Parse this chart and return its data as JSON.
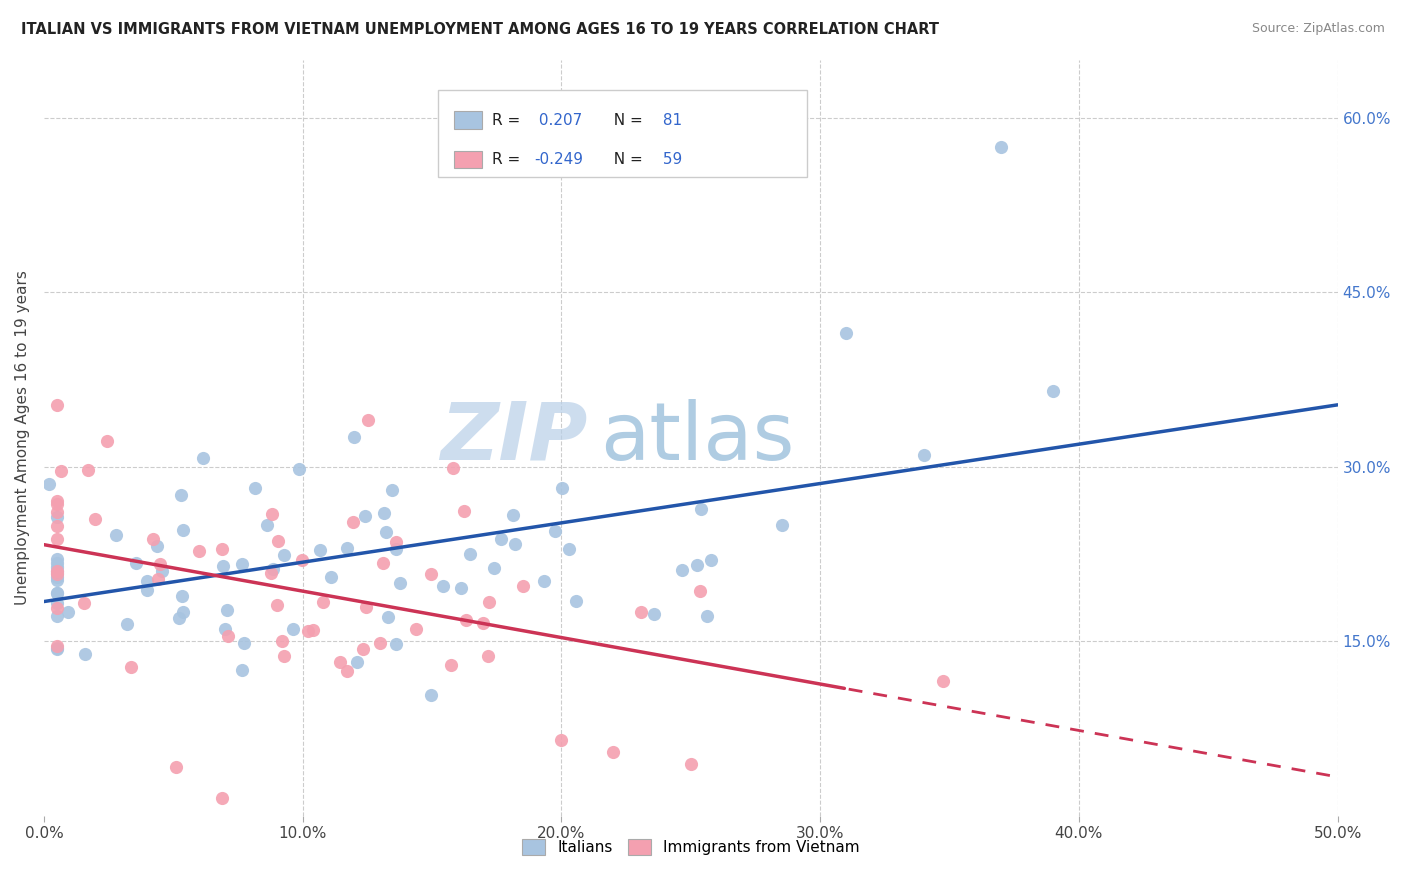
{
  "title": "ITALIAN VS IMMIGRANTS FROM VIETNAM UNEMPLOYMENT AMONG AGES 16 TO 19 YEARS CORRELATION CHART",
  "source": "Source: ZipAtlas.com",
  "ylabel": "Unemployment Among Ages 16 to 19 years",
  "xlim": [
    0.0,
    0.5
  ],
  "ylim": [
    0.0,
    0.65
  ],
  "xticks": [
    0.0,
    0.1,
    0.2,
    0.3,
    0.4,
    0.5
  ],
  "yticks": [
    0.15,
    0.3,
    0.45,
    0.6
  ],
  "ytick_labels": [
    "15.0%",
    "30.0%",
    "45.0%",
    "60.0%"
  ],
  "xtick_labels": [
    "0.0%",
    "10.0%",
    "20.0%",
    "30.0%",
    "40.0%",
    "50.0%"
  ],
  "legend_label1": "Italians",
  "legend_label2": "Immigrants from Vietnam",
  "R1": 0.207,
  "N1": 81,
  "R2": -0.249,
  "N2": 59,
  "color1": "#a8c4e0",
  "color2": "#f4a0b0",
  "line_color1": "#2255aa",
  "line_color2": "#cc3355",
  "watermark_zip": "ZIP",
  "watermark_atlas": "atlas",
  "background_color": "#ffffff"
}
